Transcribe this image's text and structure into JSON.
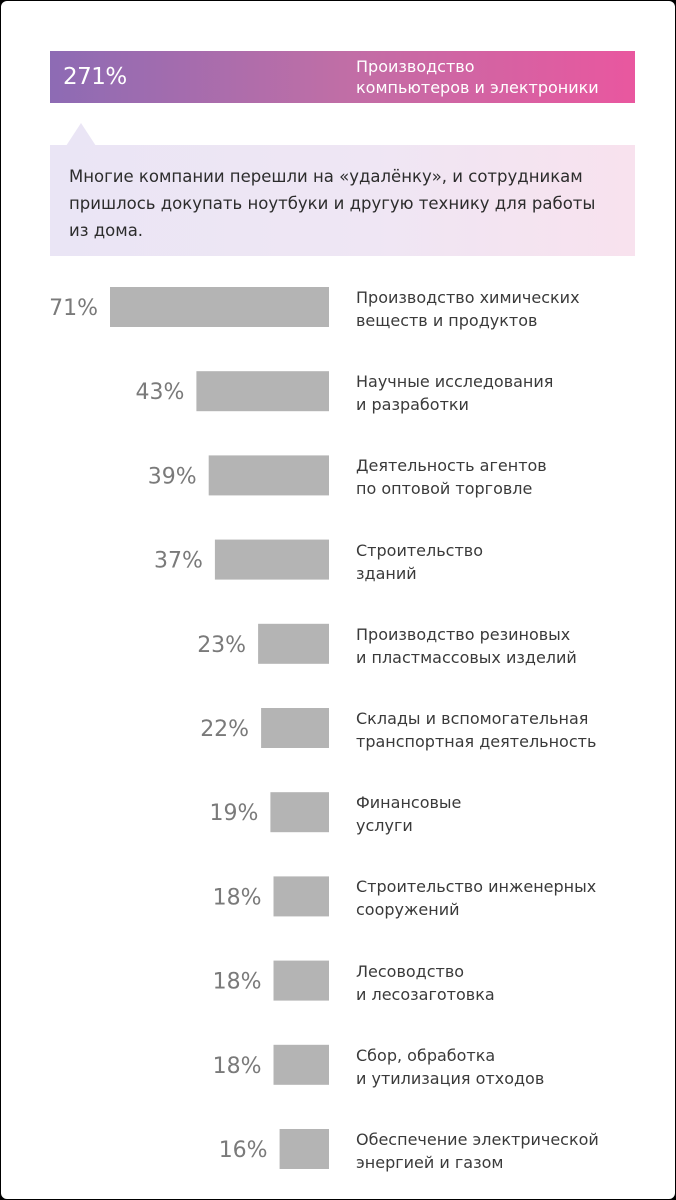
{
  "highlight": {
    "value": "271%",
    "label_lines": [
      "Производство",
      "компьютеров и электроники"
    ]
  },
  "callout": {
    "lines": [
      "Многие компании перешли на «удалёнку», и сотрудникам",
      "пришлось докупать ноутбуки и другую технику для работы",
      "из дома."
    ]
  },
  "colors": {
    "bar": "#b4b4b4",
    "value_text": "#7a7a7a",
    "gradient_start": "#8d6bb4",
    "gradient_end": "#e9579f"
  },
  "chart_data": {
    "type": "bar",
    "orientation": "horizontal",
    "max_value": 71,
    "categories": [
      [
        "Производство химических",
        "веществ и продуктов"
      ],
      [
        "Научные исследования",
        "и разработки"
      ],
      [
        "Деятельность агентов",
        "по оптовой торговле"
      ],
      [
        "Строительство",
        "зданий"
      ],
      [
        "Производство резиновых",
        "и пластмассовых изделий"
      ],
      [
        "Склады и вспомогательная",
        "транспортная деятельность"
      ],
      [
        "Финансовые",
        "услуги"
      ],
      [
        "Строительство инженерных",
        "сооружений"
      ],
      [
        "Лесоводство",
        "и лесозаготовка"
      ],
      [
        "Сбор, обработка",
        "и утилизация отходов"
      ],
      [
        "Обеспечение электрической",
        "энергией и газом"
      ]
    ],
    "values": [
      71,
      43,
      39,
      37,
      23,
      22,
      19,
      18,
      18,
      18,
      16
    ],
    "value_labels": [
      "71%",
      "43%",
      "39%",
      "37%",
      "23%",
      "22%",
      "19%",
      "18%",
      "18%",
      "18%",
      "16%"
    ]
  }
}
